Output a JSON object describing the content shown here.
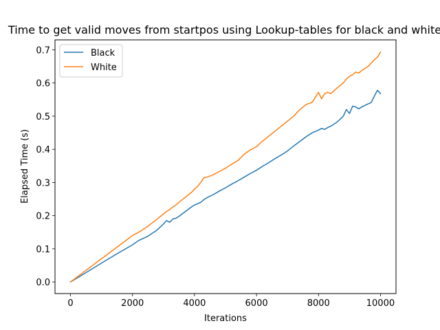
{
  "chart_data": {
    "type": "line",
    "title": "Time to get valid moves from startpos using Lookup-tables for black and white",
    "xlabel": "Iterations",
    "ylabel": "Elapsed Time (s)",
    "xlim": [
      -500,
      10500
    ],
    "ylim": [
      -0.035,
      0.73
    ],
    "xticks": [
      0,
      2000,
      4000,
      6000,
      8000,
      10000
    ],
    "yticks": [
      0.0,
      0.1,
      0.2,
      0.3,
      0.4,
      0.5,
      0.6,
      0.7
    ],
    "ytick_labels": [
      "0.0",
      "0.1",
      "0.2",
      "0.3",
      "0.4",
      "0.5",
      "0.6",
      "0.7"
    ],
    "xtick_labels": [
      "0",
      "2000",
      "4000",
      "6000",
      "8000",
      "10000"
    ],
    "grid": false,
    "legend": "top-left",
    "x": [
      0,
      500,
      1000,
      1500,
      2000,
      2200,
      2500,
      2800,
      3000,
      3100,
      3200,
      3300,
      3400,
      3500,
      3700,
      3900,
      4000,
      4100,
      4200,
      4300,
      4400,
      4600,
      4800,
      5000,
      5200,
      5400,
      5600,
      5800,
      6000,
      6200,
      6400,
      6600,
      6800,
      7000,
      7200,
      7400,
      7600,
      7800,
      8000,
      8100,
      8200,
      8300,
      8400,
      8600,
      8800,
      8900,
      9000,
      9100,
      9200,
      9300,
      9400,
      9600,
      9700,
      9800,
      9900,
      10000
    ],
    "series": [
      {
        "name": "Black",
        "color": "#1f77b4",
        "values": [
          0.0,
          0.028,
          0.057,
          0.085,
          0.112,
          0.125,
          0.138,
          0.157,
          0.175,
          0.185,
          0.18,
          0.19,
          0.192,
          0.198,
          0.212,
          0.226,
          0.232,
          0.236,
          0.24,
          0.248,
          0.254,
          0.263,
          0.274,
          0.284,
          0.295,
          0.305,
          0.316,
          0.327,
          0.337,
          0.349,
          0.36,
          0.372,
          0.383,
          0.395,
          0.41,
          0.424,
          0.438,
          0.45,
          0.458,
          0.463,
          0.46,
          0.466,
          0.47,
          0.482,
          0.5,
          0.52,
          0.508,
          0.53,
          0.528,
          0.522,
          0.528,
          0.537,
          0.541,
          0.56,
          0.578,
          0.568
        ]
      },
      {
        "name": "White",
        "color": "#ff7f0e",
        "values": [
          0.0,
          0.035,
          0.07,
          0.105,
          0.14,
          0.15,
          0.168,
          0.19,
          0.205,
          0.213,
          0.218,
          0.226,
          0.232,
          0.24,
          0.255,
          0.27,
          0.28,
          0.288,
          0.3,
          0.314,
          0.316,
          0.323,
          0.333,
          0.343,
          0.355,
          0.366,
          0.385,
          0.398,
          0.408,
          0.425,
          0.44,
          0.455,
          0.47,
          0.485,
          0.5,
          0.52,
          0.535,
          0.542,
          0.572,
          0.552,
          0.568,
          0.572,
          0.568,
          0.585,
          0.6,
          0.612,
          0.62,
          0.625,
          0.633,
          0.63,
          0.638,
          0.65,
          0.66,
          0.67,
          0.678,
          0.693
        ]
      }
    ]
  }
}
